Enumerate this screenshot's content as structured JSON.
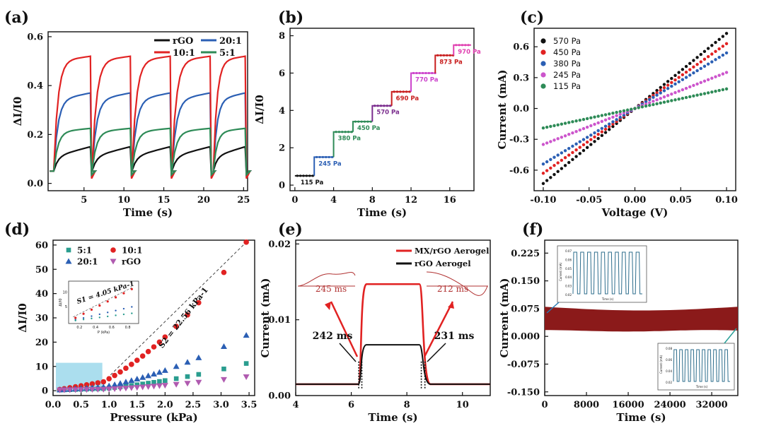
{
  "figure": {
    "panels": [
      {
        "id": "a",
        "label": "(a)",
        "type": "line",
        "xlabel": "Time (s)",
        "ylabel": "ΔI/I0",
        "xlim": [
          0.5,
          25.5
        ],
        "ylim": [
          -0.03,
          0.62
        ],
        "xticks": [
          5,
          10,
          15,
          20,
          25
        ],
        "yticks": [
          0.0,
          0.2,
          0.4,
          0.6
        ],
        "ytick_labels": [
          "0.0",
          "0.2",
          "0.4",
          "0.6"
        ],
        "legend": {
          "placement": "top-right",
          "columns": 2
        },
        "series": [
          {
            "name": "rGO",
            "color": "#111111",
            "plateau": 0.1,
            "rise": 0.06
          },
          {
            "name": "20:1",
            "color": "#2b5fb4",
            "plateau": 0.32,
            "rise": 0.29
          },
          {
            "name": "10:1",
            "color": "#e12222",
            "plateau": 0.47,
            "rise": 0.45
          },
          {
            "name": "5:1",
            "color": "#2e8b57",
            "plateau": 0.175,
            "rise": 0.16
          }
        ],
        "cycles": [
          [
            1.2,
            5.8
          ],
          [
            6.0,
            10.8
          ],
          [
            11.0,
            15.8
          ],
          [
            16.0,
            20.8
          ],
          [
            21.2,
            25.2
          ]
        ],
        "baseline": 0.05
      },
      {
        "id": "b",
        "label": "(b)",
        "type": "line",
        "xlabel": "Time (s)",
        "ylabel": "ΔI/I0",
        "xlim": [
          -0.5,
          18.5
        ],
        "ylim": [
          -0.3,
          8.4
        ],
        "xticks": [
          0,
          4,
          8,
          12,
          16
        ],
        "yticks": [
          0,
          2,
          4,
          6,
          8
        ],
        "steps": [
          {
            "t": 0.0,
            "y": 0.5,
            "label": "115 Pa",
            "color": "#111111"
          },
          {
            "t": 2.0,
            "y": 1.5,
            "label": "245 Pa",
            "color": "#2b5fb4"
          },
          {
            "t": 4.0,
            "y": 2.85,
            "label": "380 Pa",
            "color": "#2e8b57"
          },
          {
            "t": 6.0,
            "y": 3.4,
            "label": "450 Pa",
            "color": "#2e8b57"
          },
          {
            "t": 8.0,
            "y": 4.25,
            "label": "570 Pa",
            "color": "#7b2d8e"
          },
          {
            "t": 10.0,
            "y": 5.0,
            "label": "690 Pa",
            "color": "#c81e1e"
          },
          {
            "t": 12.0,
            "y": 6.0,
            "label": "770 Pa",
            "color": "#cc44cc"
          },
          {
            "t": 14.5,
            "y": 6.95,
            "label": "873 Pa",
            "color": "#c81e1e"
          },
          {
            "t": 16.4,
            "y": 7.5,
            "label": "970 Pa",
            "color": "#e040b0"
          }
        ],
        "t_end": 18.2
      },
      {
        "id": "c",
        "label": "(c)",
        "type": "scatter",
        "xlabel": "Voltage (V)",
        "ylabel": "Current (mA)",
        "xlim": [
          -0.11,
          0.11
        ],
        "ylim": [
          -0.8,
          0.78
        ],
        "xticks": [
          -0.1,
          -0.05,
          0.0,
          0.05,
          0.1
        ],
        "xtick_labels": [
          "-0.10",
          "-0.05",
          "0.00",
          "0.05",
          "0.10"
        ],
        "yticks": [
          -0.6,
          -0.3,
          0.0,
          0.3,
          0.6
        ],
        "ytick_labels": [
          "-0.6",
          "-0.3",
          "0.0",
          "0.3",
          "0.6"
        ],
        "legend": {
          "placement": "top-left"
        },
        "series": [
          {
            "name": "570 Pa",
            "color": "#111111",
            "slope": 7.3
          },
          {
            "name": "450 Pa",
            "color": "#e12222",
            "slope": 6.3
          },
          {
            "name": "380 Pa",
            "color": "#2b5fb4",
            "slope": 5.4
          },
          {
            "name": "245 Pa",
            "color": "#cc55cc",
            "slope": 3.5
          },
          {
            "name": "115 Pa",
            "color": "#2e8b57",
            "slope": 1.9
          }
        ]
      },
      {
        "id": "d",
        "label": "(d)",
        "type": "scatter",
        "xlabel": "Pressure (kPa)",
        "ylabel": "ΔI/I0",
        "xlim": [
          0.0,
          3.6
        ],
        "ylim": [
          -2,
          62
        ],
        "xticks": [
          0.0,
          0.5,
          1.0,
          1.5,
          2.0,
          2.5,
          3.0,
          3.5
        ],
        "xtick_labels": [
          "0.0",
          "0.5",
          "1.0",
          "1.5",
          "2.0",
          "2.5",
          "3.0",
          "3.5"
        ],
        "yticks": [
          0,
          10,
          20,
          30,
          40,
          50,
          60
        ],
        "legend": {
          "placement": "top-left",
          "columns": 2
        },
        "x": [
          0.12,
          0.2,
          0.3,
          0.4,
          0.5,
          0.6,
          0.7,
          0.8,
          0.9,
          1.0,
          1.1,
          1.2,
          1.3,
          1.4,
          1.5,
          1.6,
          1.7,
          1.8,
          1.9,
          2.0,
          2.2,
          2.4,
          2.6,
          3.05,
          3.45
        ],
        "series": [
          {
            "name": "5:1",
            "color": "#2a9d8f",
            "marker": "square",
            "factor": 0.18
          },
          {
            "name": "10:1",
            "color": "#e12222",
            "marker": "circle",
            "factor": 1.0
          },
          {
            "name": "20:1",
            "color": "#2b5fb4",
            "marker": "triangle",
            "factor": 0.37
          },
          {
            "name": "rGO",
            "color": "#b05bb0",
            "marker": "triangle-down",
            "factor": 0.09
          }
        ],
        "fit_label": "S2 = 22.56 kPa-1",
        "inset_fit_label": "S1 = 4.05 kPa-1",
        "inset_xlabel": "P (kPa)",
        "inset_ylabel": "ΔI/I0",
        "inset_xtick_labels": [
          "0.2",
          "0.4",
          "0.6",
          "0.8"
        ],
        "inset_ytick_labels": [
          "5",
          "10"
        ]
      },
      {
        "id": "e",
        "label": "(e)",
        "type": "line",
        "xlabel": "Time (s)",
        "ylabel": "Current (mA)",
        "xlim": [
          4,
          11
        ],
        "ylim": [
          0.0,
          0.0205
        ],
        "xticks": [
          4,
          6,
          8,
          10
        ],
        "yticks": [
          0.0,
          0.01,
          0.02
        ],
        "ytick_labels": [
          "0.00",
          "0.01",
          "0.02"
        ],
        "legend": {
          "placement": "top-right"
        },
        "series": [
          {
            "name": "MX/rGO Aerogel",
            "color": "#e12222",
            "low": 0.0015,
            "high": 0.0147
          },
          {
            "name": "rGO Aerogel",
            "color": "#111111",
            "low": 0.0015,
            "high": 0.0067
          }
        ],
        "press_on": 6.3,
        "press_off": 8.6,
        "annotations": [
          "245 ms",
          "212 ms",
          "242 ms",
          "231 ms"
        ]
      },
      {
        "id": "f",
        "label": "(f)",
        "type": "area",
        "xlabel": "Time (s)",
        "ylabel": "Current (mA)",
        "xlim": [
          0,
          37000
        ],
        "ylim": [
          -0.16,
          0.26
        ],
        "xticks": [
          0,
          8000,
          16000,
          24000,
          32000
        ],
        "yticks": [
          -0.15,
          -0.075,
          0.0,
          0.075,
          0.15,
          0.225
        ],
        "ytick_labels": [
          "-0.150",
          "-0.075",
          "0.000",
          "0.075",
          "0.150",
          "0.225"
        ],
        "band_color": "#8b1a1a",
        "band_low": 0.015,
        "band_high": 0.08,
        "inset_top_yticks": [
          "0.07",
          "0.06",
          "0.05",
          "0.04",
          "0.03",
          "0.02"
        ],
        "inset_ylabel": "Current (mA)",
        "inset_xlabel": "Time (s)",
        "inset_bottom_yticks": [
          "0.08",
          "0.06",
          "0.04",
          "0.02"
        ]
      }
    ]
  }
}
